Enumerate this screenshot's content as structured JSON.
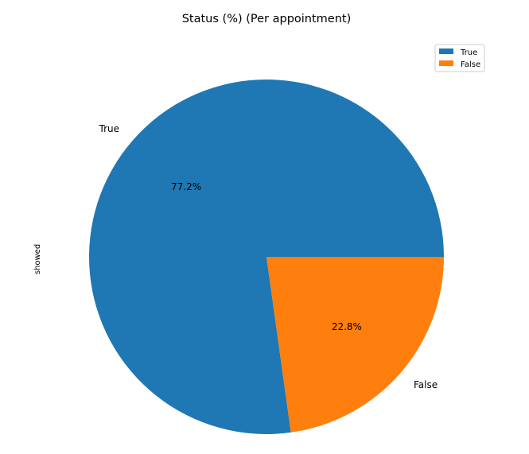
{
  "chart_data": {
    "type": "pie",
    "title": "Status (%) (Per appointment)",
    "ylabel": "showed",
    "categories": [
      "True",
      "False"
    ],
    "values": [
      77.2,
      22.8
    ],
    "percent_labels": [
      "77.2%",
      "22.8%"
    ],
    "colors": [
      "#1f77b4",
      "#ff7f0e"
    ],
    "legend": {
      "entries": [
        "True",
        "False"
      ],
      "placement": "top-right"
    }
  }
}
